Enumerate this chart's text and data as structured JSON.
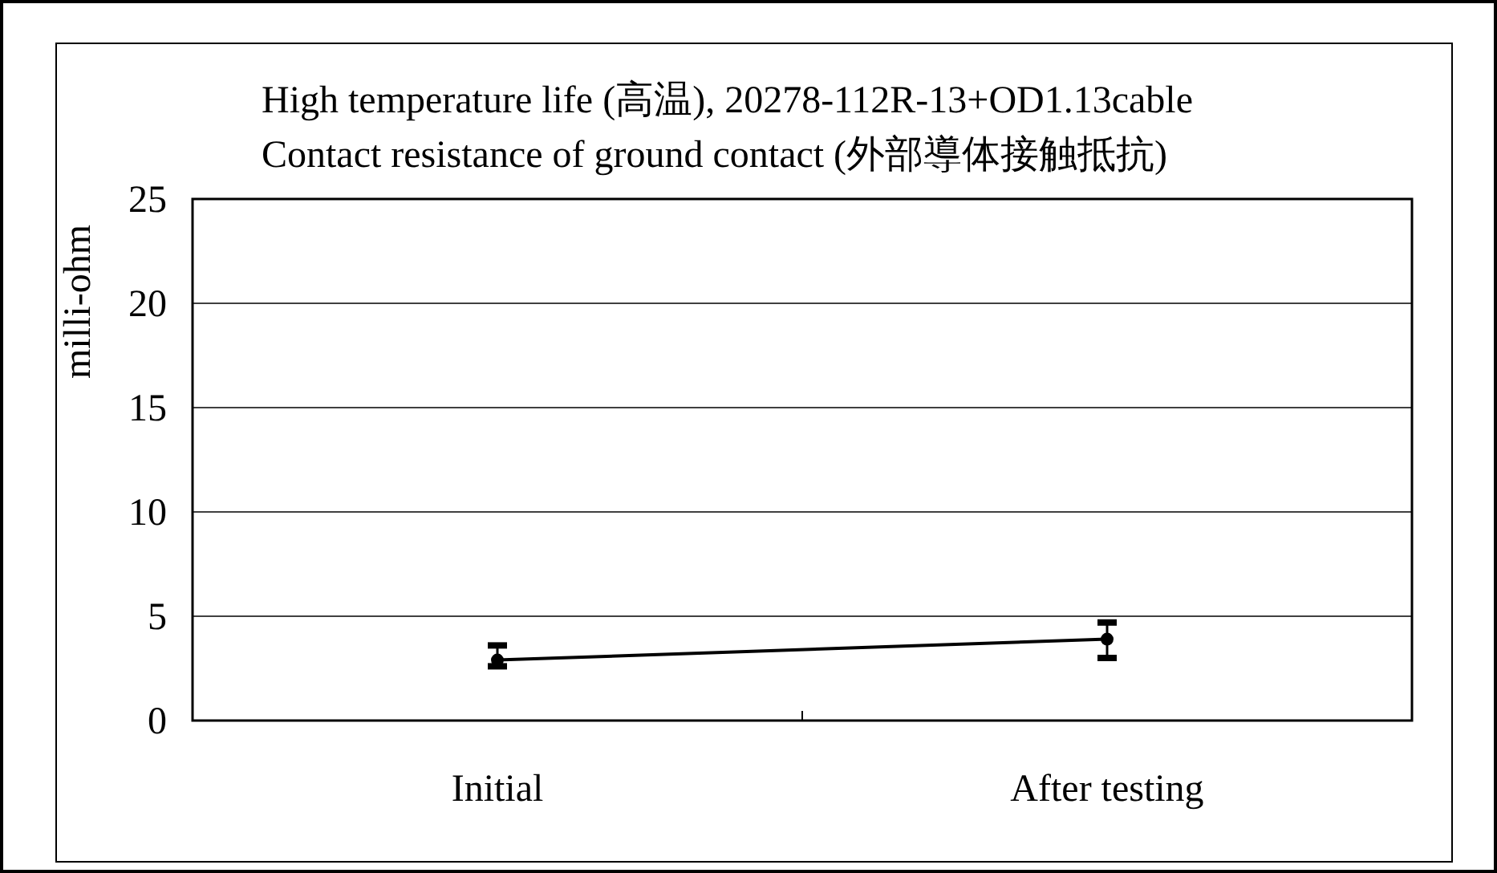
{
  "chart_data": {
    "type": "line",
    "title": "High temperature life (高温), 20278-112R-13+OD1.13cable",
    "subtitle": "Contact resistance of ground contact (外部導体接触抵抗)",
    "ylabel": "milli-ohm",
    "categories": [
      "Initial",
      "After testing"
    ],
    "series": [
      {
        "color": "#000000",
        "values": [
          2.9,
          3.9
        ],
        "errors": [
          [
            2.6,
            3.6
          ],
          [
            3.0,
            4.7
          ]
        ]
      }
    ],
    "ylim": [
      0,
      25
    ],
    "yticks": [
      0,
      5,
      10,
      15,
      20,
      25
    ],
    "grid": "y",
    "marker": "circle",
    "line_style": "solid"
  }
}
